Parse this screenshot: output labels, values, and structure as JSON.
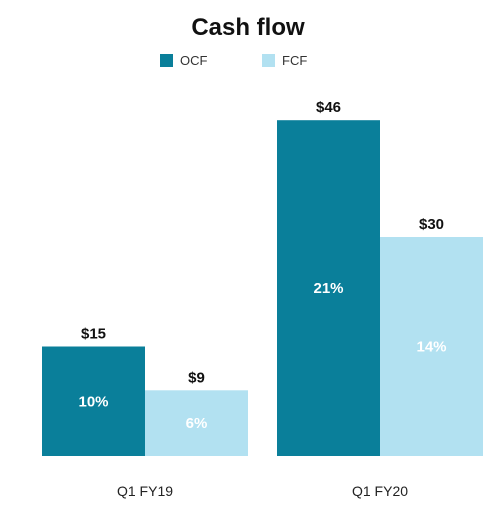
{
  "colors": {
    "OCF": "#0a7f9a",
    "FCF": "#b2e1f1"
  },
  "chart_data": {
    "type": "bar",
    "title": "Cash flow",
    "categories": [
      "Q1 FY19",
      "Q1 FY20"
    ],
    "series": [
      {
        "name": "OCF",
        "values": [
          15,
          46
        ],
        "value_labels": [
          "$15",
          "$46"
        ],
        "inner_labels": [
          "10%",
          "21%"
        ]
      },
      {
        "name": "FCF",
        "values": [
          9,
          30
        ],
        "value_labels": [
          "$9",
          "$30"
        ],
        "inner_labels": [
          "6%",
          "14%"
        ]
      }
    ],
    "ylim": [
      0,
      50
    ],
    "legend": "top",
    "grid": false,
    "xlabel": "",
    "ylabel": ""
  }
}
